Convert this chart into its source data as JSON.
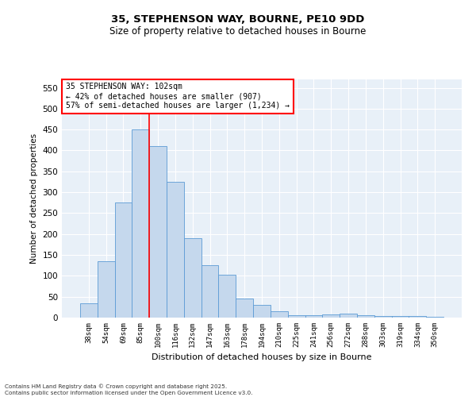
{
  "title1": "35, STEPHENSON WAY, BOURNE, PE10 9DD",
  "title2": "Size of property relative to detached houses in Bourne",
  "xlabel": "Distribution of detached houses by size in Bourne",
  "ylabel": "Number of detached properties",
  "categories": [
    "38sqm",
    "54sqm",
    "69sqm",
    "85sqm",
    "100sqm",
    "116sqm",
    "132sqm",
    "147sqm",
    "163sqm",
    "178sqm",
    "194sqm",
    "210sqm",
    "225sqm",
    "241sqm",
    "256sqm",
    "272sqm",
    "288sqm",
    "303sqm",
    "319sqm",
    "334sqm",
    "350sqm"
  ],
  "values": [
    35,
    135,
    275,
    450,
    410,
    325,
    190,
    125,
    103,
    45,
    30,
    15,
    5,
    5,
    8,
    10,
    5,
    3,
    3,
    3,
    2
  ],
  "bar_color": "#c5d8ed",
  "bar_edge_color": "#5b9bd5",
  "vline_color": "red",
  "vline_x_index": 3.5,
  "annotation_text": "35 STEPHENSON WAY: 102sqm\n← 42% of detached houses are smaller (907)\n57% of semi-detached houses are larger (1,234) →",
  "annotation_box_color": "white",
  "annotation_box_edge": "red",
  "ylim": [
    0,
    570
  ],
  "yticks": [
    0,
    50,
    100,
    150,
    200,
    250,
    300,
    350,
    400,
    450,
    500,
    550
  ],
  "background_color": "#e8f0f8",
  "grid_color": "white",
  "footnote": "Contains HM Land Registry data © Crown copyright and database right 2025.\nContains public sector information licensed under the Open Government Licence v3.0."
}
